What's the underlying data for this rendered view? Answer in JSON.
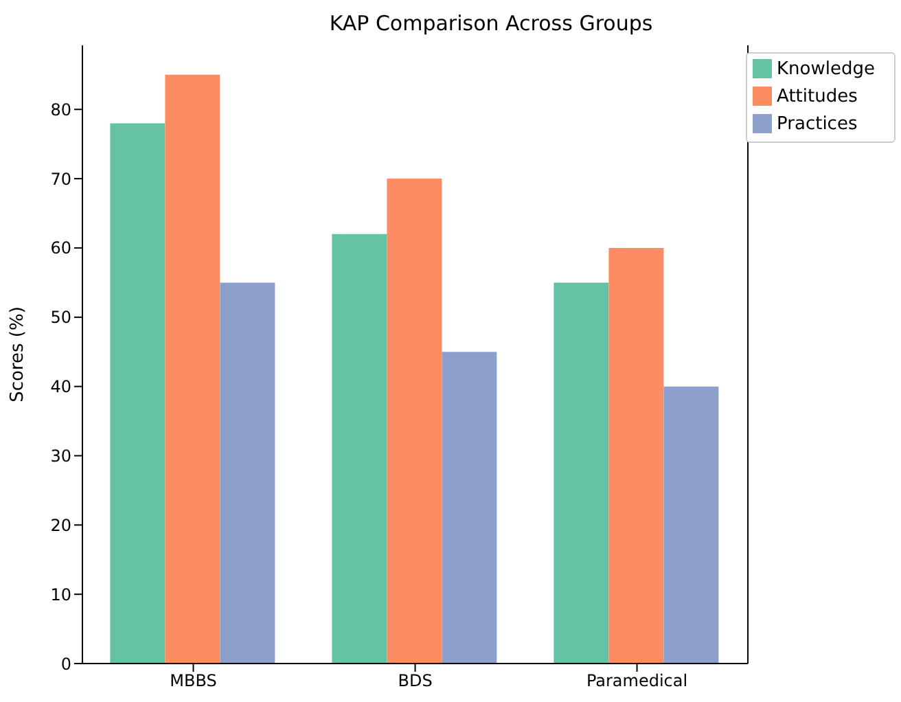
{
  "chart_data": {
    "type": "bar",
    "title": "KAP Comparison Across Groups",
    "ylabel": "Scores (%)",
    "categories": [
      "MBBS",
      "BDS",
      "Paramedical"
    ],
    "series": [
      {
        "name": "Knowledge",
        "color": "#66c2a5",
        "values": [
          78,
          62,
          55
        ]
      },
      {
        "name": "Attitudes",
        "color": "#fc8d62",
        "values": [
          85,
          70,
          60
        ]
      },
      {
        "name": "Practices",
        "color": "#8da0cb",
        "values": [
          55,
          45,
          40
        ]
      }
    ],
    "ylim": [
      0,
      89.25
    ],
    "yticks": [
      0,
      10,
      20,
      30,
      40,
      50,
      60,
      70,
      80
    ],
    "grid": false,
    "legend": "top right"
  }
}
